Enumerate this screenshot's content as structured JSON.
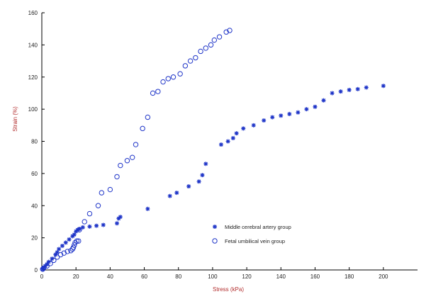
{
  "chart_data": {
    "type": "scatter",
    "xlabel": "Stress (kPa)",
    "ylabel": "Strain (%)",
    "xlim": [
      0,
      220
    ],
    "ylim": [
      0,
      160
    ],
    "xticks": [
      0,
      20,
      40,
      60,
      80,
      100,
      120,
      140,
      160,
      180,
      200
    ],
    "yticks": [
      0,
      20,
      40,
      60,
      80,
      100,
      120,
      140,
      160
    ],
    "grid": false,
    "legend_position": "center-right",
    "series": [
      {
        "name": "Middle cerebral artery group",
        "marker": "star",
        "color": "#1f35c8",
        "points": [
          [
            0.5,
            0.5
          ],
          [
            1,
            1.5
          ],
          [
            2,
            2.5
          ],
          [
            3,
            3.5
          ],
          [
            4,
            5
          ],
          [
            6,
            7
          ],
          [
            8,
            9.5
          ],
          [
            9,
            11
          ],
          [
            10,
            13
          ],
          [
            12,
            15
          ],
          [
            14,
            17
          ],
          [
            16,
            19
          ],
          [
            18,
            21
          ],
          [
            19,
            22
          ],
          [
            20,
            24
          ],
          [
            21,
            25
          ],
          [
            22,
            25.5
          ],
          [
            24,
            26.5
          ],
          [
            28,
            27
          ],
          [
            32,
            27.5
          ],
          [
            36,
            28
          ],
          [
            44,
            29
          ],
          [
            45,
            32
          ],
          [
            46,
            33
          ],
          [
            62,
            38
          ],
          [
            75,
            46
          ],
          [
            79,
            48
          ],
          [
            86,
            52
          ],
          [
            92,
            55
          ],
          [
            94,
            59
          ],
          [
            96,
            66
          ],
          [
            105,
            78
          ],
          [
            109,
            80
          ],
          [
            112,
            82
          ],
          [
            114,
            85
          ],
          [
            118,
            88
          ],
          [
            124,
            90
          ],
          [
            130,
            93
          ],
          [
            135,
            95
          ],
          [
            140,
            96
          ],
          [
            145,
            97
          ],
          [
            150,
            98
          ],
          [
            155,
            100
          ],
          [
            160,
            101.5
          ],
          [
            165,
            105.5
          ],
          [
            170,
            110
          ],
          [
            175,
            111
          ],
          [
            180,
            112
          ],
          [
            185,
            112.5
          ],
          [
            190,
            113.5
          ],
          [
            200,
            114.5
          ]
        ]
      },
      {
        "name": "Fetal umbilical vein group",
        "marker": "circle",
        "color": "#1f35c8",
        "points": [
          [
            0.5,
            0.5
          ],
          [
            1,
            1
          ],
          [
            3,
            2.5
          ],
          [
            5,
            4
          ],
          [
            7,
            6
          ],
          [
            9,
            8
          ],
          [
            11,
            9.5
          ],
          [
            13,
            10.5
          ],
          [
            15,
            11.5
          ],
          [
            17,
            12
          ],
          [
            18,
            13
          ],
          [
            18.5,
            14
          ],
          [
            19,
            15.5
          ],
          [
            19.5,
            17
          ],
          [
            20.5,
            18
          ],
          [
            21.5,
            18
          ],
          [
            22,
            25
          ],
          [
            25,
            30
          ],
          [
            28,
            35
          ],
          [
            33,
            40
          ],
          [
            35,
            48
          ],
          [
            40,
            50
          ],
          [
            44,
            58
          ],
          [
            46,
            65
          ],
          [
            50,
            68
          ],
          [
            53,
            70
          ],
          [
            55,
            78
          ],
          [
            59,
            88
          ],
          [
            62,
            95
          ],
          [
            65,
            110
          ],
          [
            68,
            111
          ],
          [
            71,
            117
          ],
          [
            74,
            119
          ],
          [
            77,
            120
          ],
          [
            81,
            122
          ],
          [
            84,
            127
          ],
          [
            87,
            130
          ],
          [
            90,
            132
          ],
          [
            93,
            136
          ],
          [
            96,
            138
          ],
          [
            99,
            140
          ],
          [
            101,
            143
          ],
          [
            104,
            145
          ],
          [
            108,
            148
          ],
          [
            110,
            149
          ]
        ]
      }
    ]
  }
}
